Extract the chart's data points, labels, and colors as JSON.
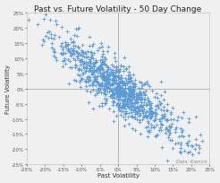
{
  "title": "Past vs. Future Volatility - 50 Day Change",
  "xlabel": "Past Volatility",
  "ylabel": "Future Volatility",
  "attribution": "Data: Kienick",
  "xlim": [
    -0.25,
    0.25
  ],
  "ylim": [
    -0.25,
    0.25
  ],
  "xticks": [
    -0.25,
    -0.2,
    -0.15,
    -0.1,
    -0.05,
    0.0,
    0.05,
    0.1,
    0.15,
    0.2,
    0.25
  ],
  "yticks": [
    -0.25,
    -0.2,
    -0.15,
    -0.1,
    -0.05,
    0.0,
    0.05,
    0.1,
    0.15,
    0.2,
    0.25
  ],
  "marker_color": "#5B9BD5",
  "marker": "+",
  "marker_size": 8,
  "seed": 42,
  "n_points": 900,
  "background_color": "#f0f0f0",
  "plot_area_color": "#f0f0f0",
  "title_fontsize": 6.5,
  "label_fontsize": 5,
  "tick_fontsize": 4,
  "attribution_fontsize": 3.8
}
